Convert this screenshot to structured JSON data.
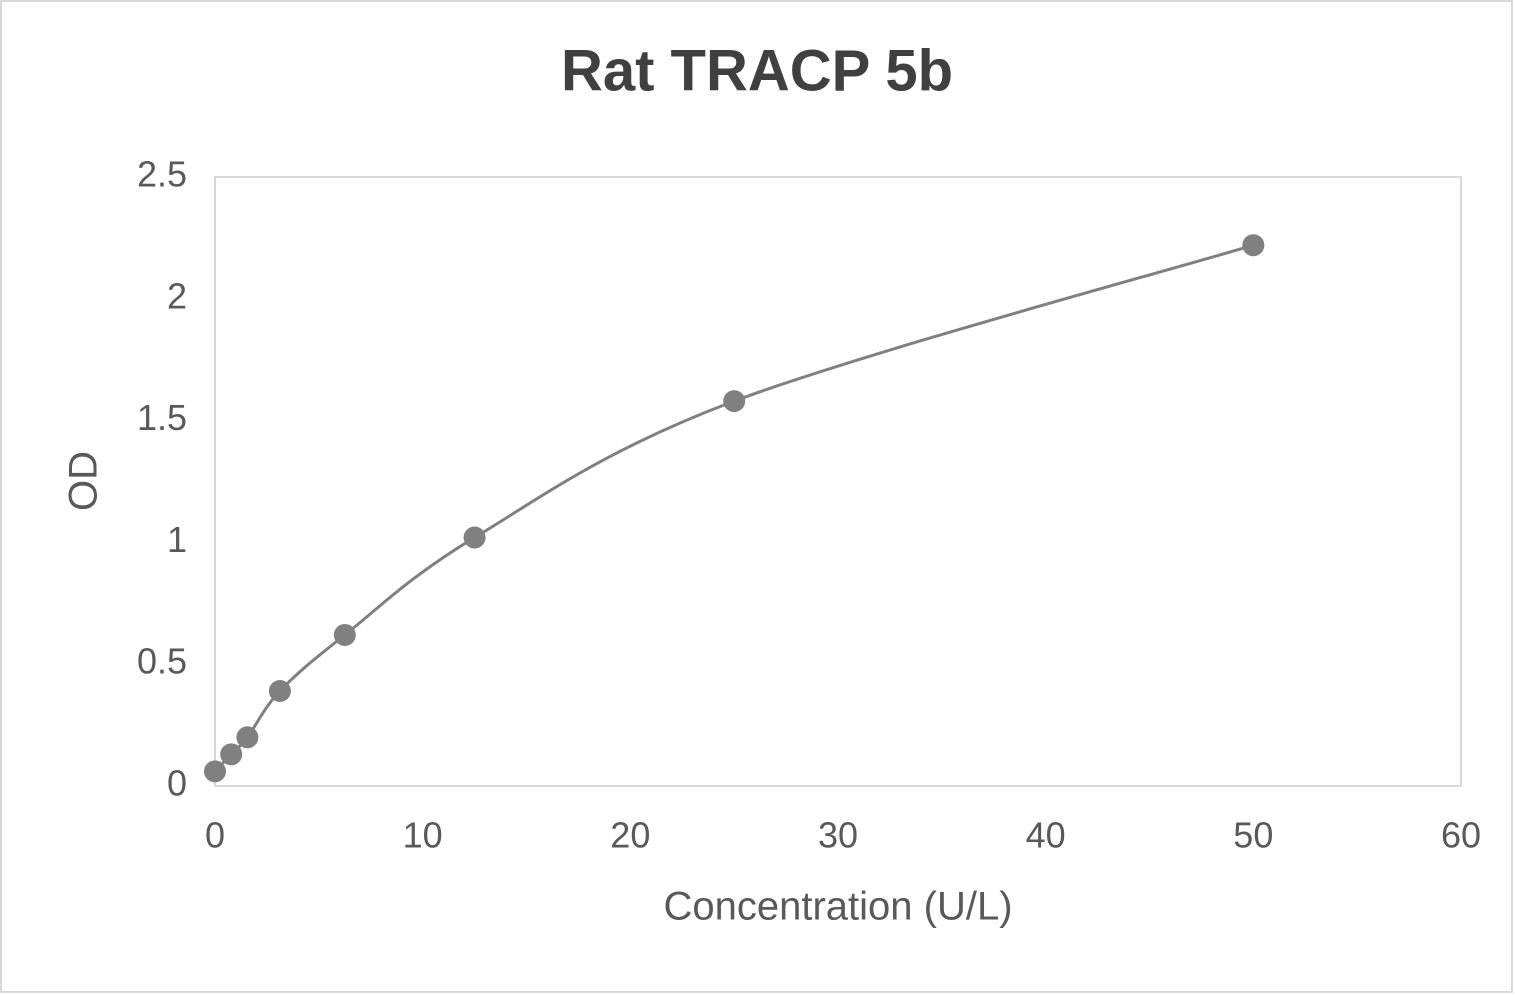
{
  "chart_data": {
    "type": "scatter",
    "title": "Rat TRACP 5b",
    "x_label": "Concentration (U/L)",
    "y_label": "OD",
    "x": [
      0,
      0.78,
      1.56,
      3.125,
      6.25,
      12.5,
      25,
      50
    ],
    "values": [
      0.06,
      0.13,
      0.2,
      0.39,
      0.62,
      1.02,
      1.58,
      2.22
    ],
    "color": "#808080",
    "smooth": true,
    "xlim": [
      0,
      60
    ],
    "xticks": [
      0,
      10,
      20,
      30,
      40,
      50,
      60
    ],
    "ylim": [
      0,
      2.5
    ],
    "yticks": [
      0,
      0.5,
      1,
      1.5,
      2,
      2.5
    ]
  }
}
